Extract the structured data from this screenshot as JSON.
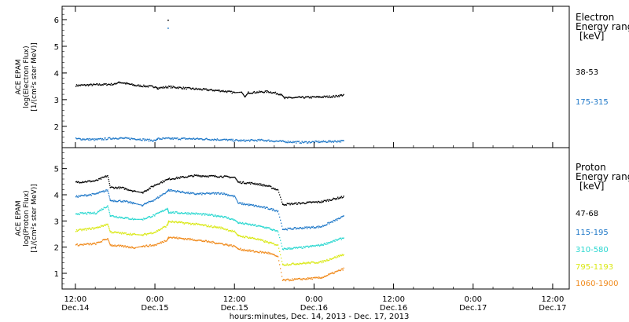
{
  "chart_data": [
    {
      "type": "scatter",
      "panel": "electron",
      "ylabel_lines": [
        "ACE EPAM",
        "log(Electron Flux)",
        "[1/(cm²s ster MeV)]"
      ],
      "ylim": [
        1.2,
        6.5
      ],
      "yticks": [
        2,
        3,
        4,
        5,
        6
      ],
      "legend_title_lines": [
        "Electron",
        "Energy ranges",
        "[keV]"
      ],
      "series": [
        {
          "name": "38-53",
          "color": "#000000",
          "points": [
            [
              0.0,
              3.55
            ],
            [
              3.0,
              3.58
            ],
            [
              6.0,
              3.6
            ],
            [
              6.5,
              3.68
            ],
            [
              9.0,
              3.55
            ],
            [
              12.0,
              3.5
            ],
            [
              12.3,
              3.45
            ],
            [
              14.0,
              3.5
            ],
            [
              18.0,
              3.42
            ],
            [
              22.0,
              3.35
            ],
            [
              24.0,
              3.28
            ],
            [
              25.0,
              3.3
            ],
            [
              25.5,
              3.12
            ],
            [
              26.0,
              3.28
            ],
            [
              29.0,
              3.32
            ],
            [
              31.0,
              3.22
            ],
            [
              31.5,
              3.08
            ],
            [
              34.0,
              3.1
            ],
            [
              37.0,
              3.12
            ],
            [
              39.0,
              3.14
            ],
            [
              40.5,
              3.2
            ]
          ]
        },
        {
          "name": "175-315",
          "color": "#1f78c8",
          "points": [
            [
              0.0,
              1.55
            ],
            [
              3.0,
              1.52
            ],
            [
              6.0,
              1.58
            ],
            [
              9.0,
              1.55
            ],
            [
              12.0,
              1.48
            ],
            [
              12.3,
              1.55
            ],
            [
              14.0,
              1.56
            ],
            [
              18.0,
              1.55
            ],
            [
              22.0,
              1.52
            ],
            [
              25.0,
              1.48
            ],
            [
              28.0,
              1.5
            ],
            [
              31.0,
              1.45
            ],
            [
              34.0,
              1.42
            ],
            [
              37.0,
              1.44
            ],
            [
              40.5,
              1.47
            ]
          ]
        }
      ],
      "outliers": [
        {
          "x": 13.9,
          "y": 6.0,
          "color": "#000000"
        },
        {
          "x": 13.9,
          "y": 5.7,
          "color": "#1f78c8"
        }
      ]
    },
    {
      "type": "scatter",
      "panel": "proton",
      "ylabel_lines": [
        "ACE EPAM",
        "log(Proton Flux)",
        "[1/(cm²s ster MeV)]"
      ],
      "ylim": [
        0.4,
        5.8
      ],
      "yticks": [
        1,
        2,
        3,
        4,
        5
      ],
      "legend_title_lines": [
        "Proton",
        "Energy ranges",
        "[keV]"
      ],
      "series": [
        {
          "name": "47-68",
          "color": "#000000",
          "points": [
            [
              0.0,
              4.5
            ],
            [
              3.0,
              4.55
            ],
            [
              4.8,
              4.75
            ],
            [
              5.2,
              4.3
            ],
            [
              7.0,
              4.28
            ],
            [
              9.0,
              4.15
            ],
            [
              10.0,
              4.1
            ],
            [
              12.0,
              4.4
            ],
            [
              13.8,
              4.6
            ],
            [
              14.0,
              4.62
            ],
            [
              18.0,
              4.75
            ],
            [
              22.0,
              4.72
            ],
            [
              24.0,
              4.68
            ],
            [
              24.5,
              4.5
            ],
            [
              27.0,
              4.45
            ],
            [
              29.0,
              4.35
            ],
            [
              30.5,
              4.2
            ],
            [
              31.2,
              3.65
            ],
            [
              34.0,
              3.7
            ],
            [
              37.0,
              3.75
            ],
            [
              40.5,
              3.95
            ]
          ]
        },
        {
          "name": "115-195",
          "color": "#1f78c8",
          "points": [
            [
              0.0,
              3.95
            ],
            [
              3.0,
              4.05
            ],
            [
              4.8,
              4.2
            ],
            [
              5.2,
              3.8
            ],
            [
              7.0,
              3.78
            ],
            [
              9.0,
              3.68
            ],
            [
              10.0,
              3.62
            ],
            [
              12.0,
              3.85
            ],
            [
              13.8,
              4.15
            ],
            [
              14.0,
              4.2
            ],
            [
              18.0,
              4.05
            ],
            [
              22.0,
              4.08
            ],
            [
              24.0,
              3.95
            ],
            [
              24.5,
              3.7
            ],
            [
              27.0,
              3.6
            ],
            [
              29.0,
              3.5
            ],
            [
              30.5,
              3.4
            ],
            [
              31.2,
              2.7
            ],
            [
              34.0,
              2.75
            ],
            [
              37.0,
              2.8
            ],
            [
              40.5,
              3.2
            ]
          ]
        },
        {
          "name": "310-580",
          "color": "#2ad7d0",
          "points": [
            [
              0.0,
              3.3
            ],
            [
              3.0,
              3.32
            ],
            [
              4.8,
              3.6
            ],
            [
              5.2,
              3.22
            ],
            [
              7.0,
              3.15
            ],
            [
              9.0,
              3.08
            ],
            [
              10.0,
              3.08
            ],
            [
              12.0,
              3.25
            ],
            [
              13.8,
              3.5
            ],
            [
              14.0,
              3.35
            ],
            [
              18.0,
              3.3
            ],
            [
              22.0,
              3.2
            ],
            [
              24.0,
              3.05
            ],
            [
              24.5,
              2.95
            ],
            [
              27.0,
              2.85
            ],
            [
              29.0,
              2.75
            ],
            [
              30.5,
              2.6
            ],
            [
              31.2,
              1.95
            ],
            [
              34.0,
              2.0
            ],
            [
              37.0,
              2.1
            ],
            [
              40.5,
              2.38
            ]
          ]
        },
        {
          "name": "795-1193",
          "color": "#d9e812",
          "points": [
            [
              0.0,
              2.65
            ],
            [
              3.0,
              2.75
            ],
            [
              4.8,
              2.9
            ],
            [
              5.2,
              2.6
            ],
            [
              7.0,
              2.55
            ],
            [
              9.0,
              2.5
            ],
            [
              10.0,
              2.48
            ],
            [
              12.0,
              2.6
            ],
            [
              13.8,
              2.85
            ],
            [
              14.0,
              3.0
            ],
            [
              18.0,
              2.9
            ],
            [
              22.0,
              2.75
            ],
            [
              24.0,
              2.6
            ],
            [
              24.5,
              2.45
            ],
            [
              27.0,
              2.35
            ],
            [
              29.0,
              2.2
            ],
            [
              30.5,
              2.1
            ],
            [
              31.2,
              1.35
            ],
            [
              34.0,
              1.4
            ],
            [
              37.0,
              1.45
            ],
            [
              40.5,
              1.75
            ]
          ]
        },
        {
          "name": "1060-1900",
          "color": "#f08a1c",
          "points": [
            [
              0.0,
              2.1
            ],
            [
              3.0,
              2.15
            ],
            [
              4.8,
              2.35
            ],
            [
              5.2,
              2.1
            ],
            [
              7.0,
              2.05
            ],
            [
              9.0,
              2.0
            ],
            [
              10.0,
              2.05
            ],
            [
              12.0,
              2.1
            ],
            [
              13.8,
              2.3
            ],
            [
              14.0,
              2.4
            ],
            [
              18.0,
              2.3
            ],
            [
              22.0,
              2.15
            ],
            [
              24.0,
              2.05
            ],
            [
              24.5,
              1.95
            ],
            [
              27.0,
              1.85
            ],
            [
              29.0,
              1.8
            ],
            [
              30.5,
              1.65
            ],
            [
              31.2,
              0.75
            ],
            [
              34.0,
              0.8
            ],
            [
              37.0,
              0.85
            ],
            [
              40.5,
              1.2
            ]
          ]
        }
      ],
      "outliers": []
    }
  ],
  "time_axis": {
    "xlim": [
      -2.0,
      74.5
    ],
    "ticks": [
      {
        "x": 0,
        "label_top": "12:00",
        "label_bottom": "Dec.14"
      },
      {
        "x": 12,
        "label_top": "0:00",
        "label_bottom": "Dec.15"
      },
      {
        "x": 24,
        "label_top": "12:00",
        "label_bottom": "Dec.15"
      },
      {
        "x": 36,
        "label_top": "0:00",
        "label_bottom": "Dec.16"
      },
      {
        "x": 48,
        "label_top": "12:00",
        "label_bottom": "Dec.16"
      },
      {
        "x": 60,
        "label_top": "0:00",
        "label_bottom": "Dec.17"
      },
      {
        "x": 72,
        "label_top": "12:00",
        "label_bottom": "Dec.17"
      }
    ],
    "xlabel": "hours:minutes, Dec. 14, 2013 - Dec. 17, 2013"
  }
}
